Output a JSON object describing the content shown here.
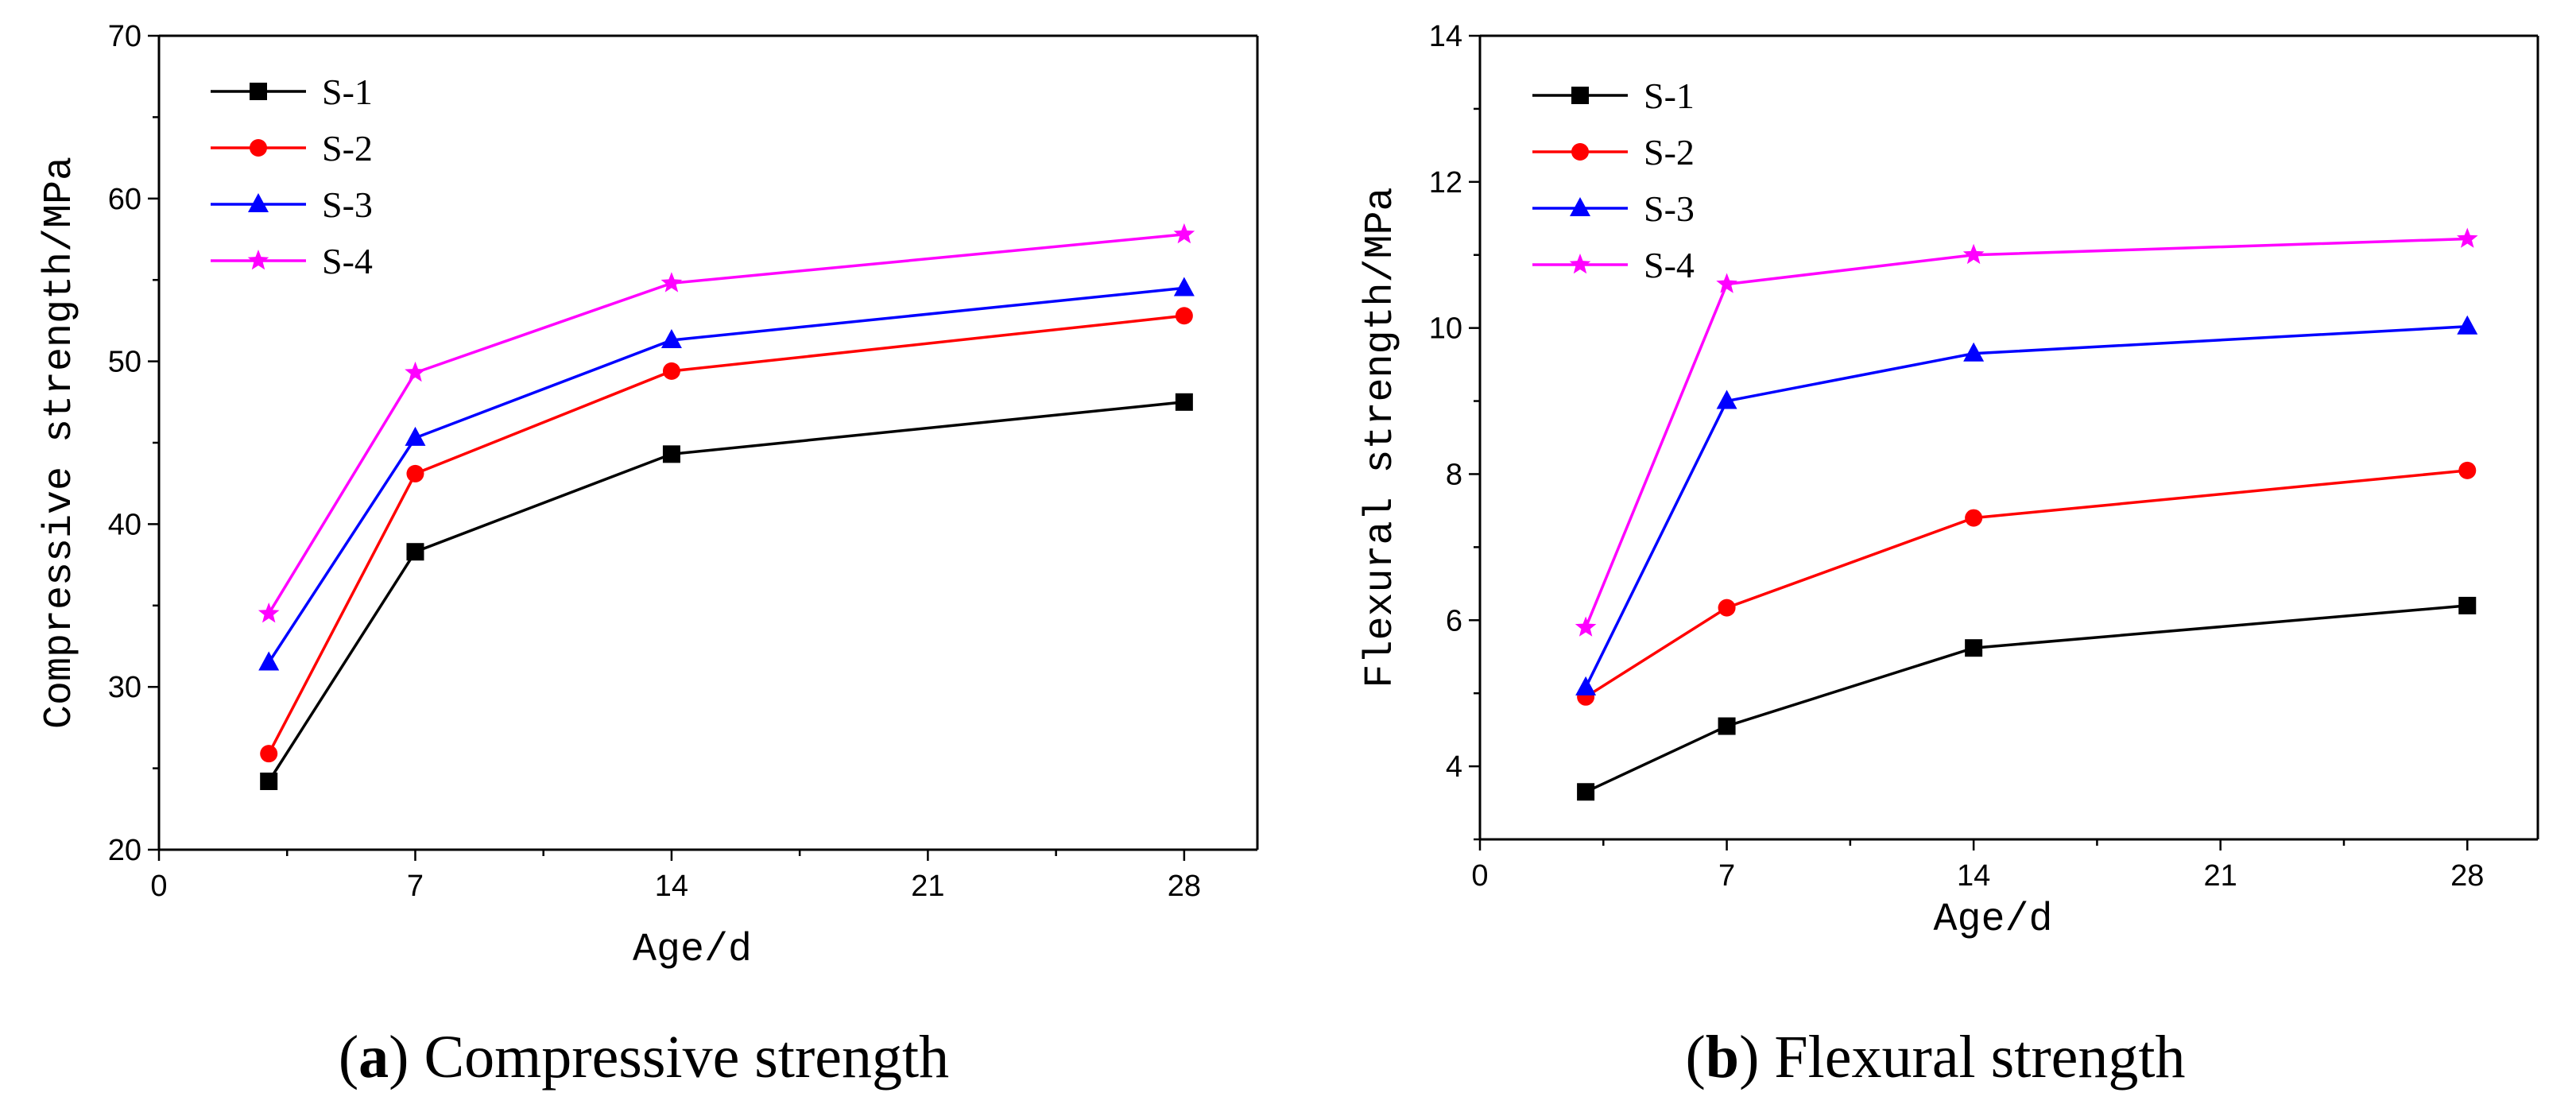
{
  "colors": {
    "S-1": "#000000",
    "S-2": "#ff0000",
    "S-3": "#0000ff",
    "S-4": "#ff00ff"
  },
  "markers": {
    "S-1": "square",
    "S-2": "circle",
    "S-3": "triangle",
    "S-4": "star"
  },
  "chart_data": [
    {
      "type": "line",
      "panel": "a",
      "caption_letter": "a",
      "caption_text": "Compressive strength",
      "xlabel": "Age/d",
      "ylabel": "Compressive strength/MPa",
      "xlim": [
        0,
        30
      ],
      "ylim": [
        20,
        70
      ],
      "xticks": [
        0,
        7,
        14,
        21,
        28
      ],
      "yticks": [
        20,
        30,
        40,
        50,
        60,
        70
      ],
      "x": [
        3,
        7,
        14,
        28
      ],
      "legend_position": "top-left",
      "series": [
        {
          "name": "S-1",
          "values": [
            24.2,
            38.3,
            44.3,
            47.5
          ]
        },
        {
          "name": "S-2",
          "values": [
            25.9,
            43.1,
            49.4,
            52.8
          ]
        },
        {
          "name": "S-3",
          "values": [
            31.5,
            45.3,
            51.3,
            54.5
          ]
        },
        {
          "name": "S-4",
          "values": [
            34.5,
            49.3,
            54.8,
            57.8
          ]
        }
      ]
    },
    {
      "type": "line",
      "panel": "b",
      "caption_letter": "b",
      "caption_text": "Flexural strength",
      "xlabel": "Age/d",
      "ylabel": "Flexural strength/MPa",
      "xlim": [
        0,
        30
      ],
      "ylim": [
        3,
        14
      ],
      "xticks": [
        0,
        7,
        14,
        21,
        28
      ],
      "yticks": [
        4,
        6,
        8,
        10,
        12,
        14
      ],
      "x": [
        3,
        7,
        14,
        28
      ],
      "legend_position": "top-left",
      "series": [
        {
          "name": "S-1",
          "values": [
            3.65,
            4.55,
            5.62,
            6.2
          ]
        },
        {
          "name": "S-2",
          "values": [
            4.95,
            6.17,
            7.4,
            8.05
          ]
        },
        {
          "name": "S-3",
          "values": [
            5.08,
            9.0,
            9.65,
            10.02
          ]
        },
        {
          "name": "S-4",
          "values": [
            5.9,
            10.6,
            11.0,
            11.22
          ]
        }
      ]
    }
  ]
}
